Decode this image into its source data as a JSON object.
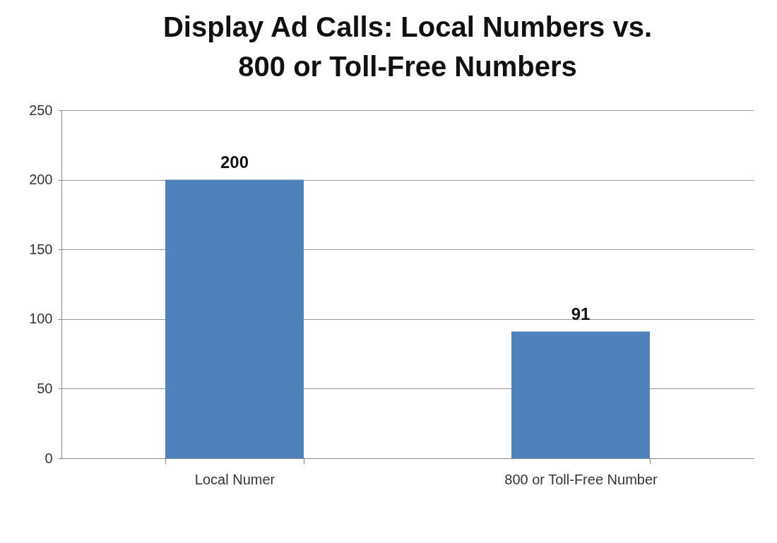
{
  "chart_data": {
    "type": "bar",
    "title": "Display Ad Calls: Local Numbers  vs.\n800 or Toll-Free Numbers",
    "categories": [
      "Local Numer",
      "800 or Toll-Free Number"
    ],
    "values": [
      200,
      91
    ],
    "color": "#4f81bd",
    "ylim": [
      0,
      250
    ],
    "yticks": [
      0,
      50,
      100,
      150,
      200,
      250
    ],
    "grid": "y",
    "data_labels": true
  }
}
